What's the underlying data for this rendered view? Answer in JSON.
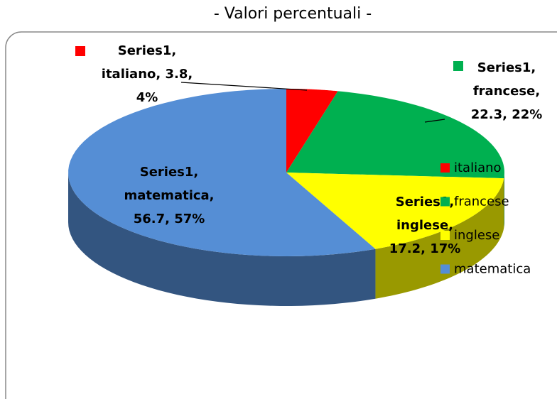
{
  "chart_data": {
    "type": "pie",
    "title": "- Valori percentuali -",
    "series_name": "Series1",
    "categories": [
      "italiano",
      "francese",
      "inglese",
      "matematica"
    ],
    "values": [
      3.8,
      22.3,
      17.2,
      56.7
    ],
    "colors": [
      "#ff0000",
      "#00b050",
      "#ffff00",
      "#558ed5"
    ],
    "data_labels": [
      [
        "Series1,",
        "italiano, 3.8,",
        "4%"
      ],
      [
        "Series1,",
        "francese,",
        "22.3, 22%"
      ],
      [
        "Series1,",
        "inglese,",
        "17.2, 17%"
      ],
      [
        "Series1,",
        "matematica,",
        "56.7, 57%"
      ]
    ],
    "legend": "right"
  }
}
